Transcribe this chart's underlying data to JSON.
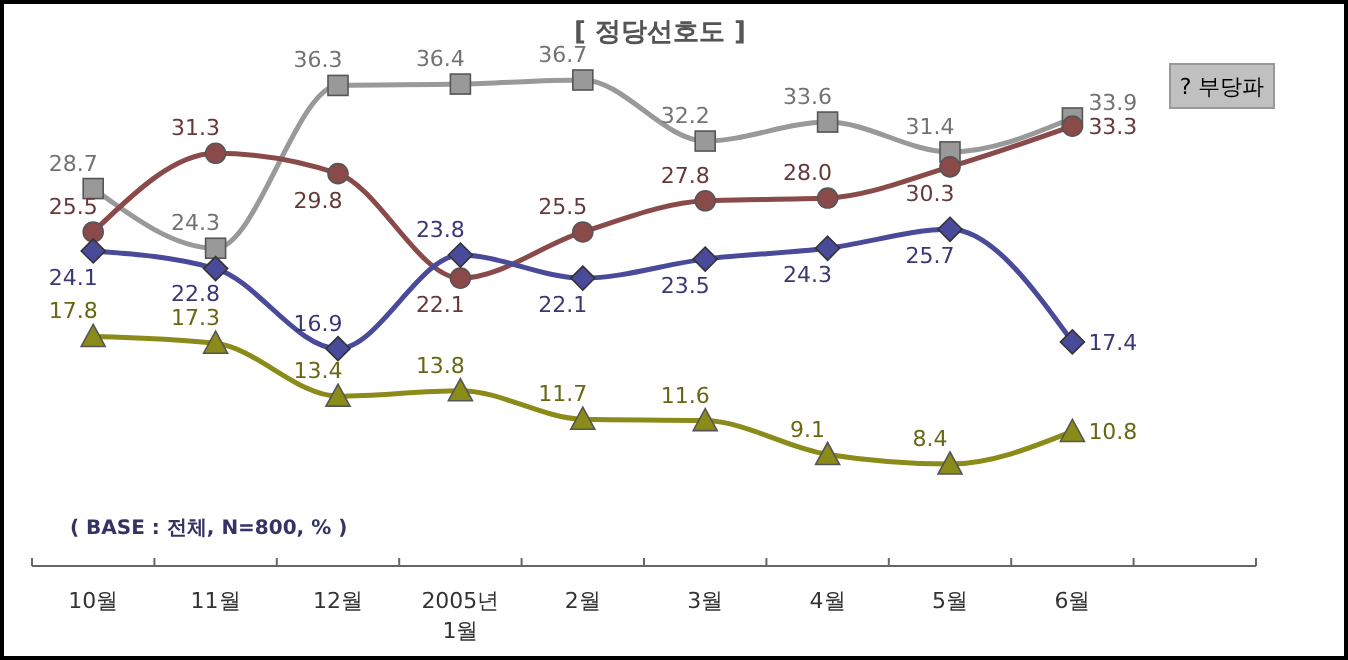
{
  "chart_data": {
    "type": "line",
    "title": "[ 정당선호도 ]",
    "categories": [
      "10월",
      "11월",
      "12월",
      "2005년\n1월",
      "2월",
      "3월",
      "4월",
      "5월",
      "6월"
    ],
    "series": [
      {
        "name": "? 부당파",
        "color": "#999999",
        "marker": "square",
        "values": [
          28.7,
          24.3,
          36.3,
          36.4,
          36.7,
          32.2,
          33.6,
          31.4,
          33.9
        ]
      },
      {
        "color": "#8b4a4a",
        "marker": "circle",
        "values": [
          25.5,
          31.3,
          29.8,
          22.1,
          25.5,
          27.8,
          28.0,
          30.3,
          33.3
        ],
        "value_labels": [
          "25.5",
          "31.3",
          "29.8",
          "22.1",
          "25.5",
          "27.8",
          "28.0",
          "30.3",
          "33.3"
        ]
      },
      {
        "color": "#4a4a9a",
        "marker": "diamond",
        "values": [
          24.1,
          22.8,
          16.9,
          23.8,
          22.1,
          23.5,
          24.3,
          25.7,
          17.4
        ]
      },
      {
        "color": "#8b8b1a",
        "marker": "triangle",
        "values": [
          17.8,
          17.3,
          13.4,
          13.8,
          11.7,
          11.6,
          9.1,
          8.4,
          10.8
        ]
      }
    ],
    "data_labels": true,
    "legend": "right",
    "tick_labels": "x",
    "annotations": [
      "( BASE : 전체, N=800, % )"
    ]
  }
}
